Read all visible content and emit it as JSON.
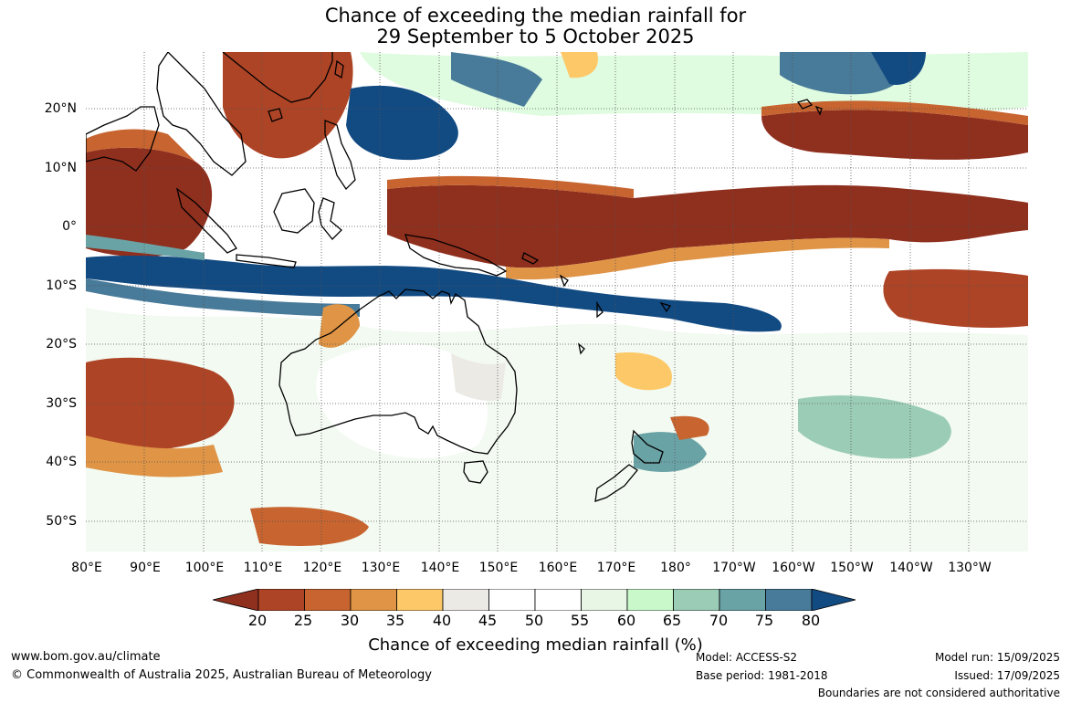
{
  "title": {
    "line1": "Chance of exceeding the median rainfall for",
    "line2": "29 September to 5 October 2025"
  },
  "axes": {
    "lat_labels": [
      "20°N",
      "10°N",
      "0°",
      "10°S",
      "20°S",
      "30°S",
      "40°S",
      "50°S"
    ],
    "lon_labels": [
      "80°E",
      "90°E",
      "100°E",
      "110°E",
      "120°E",
      "130°E",
      "140°E",
      "150°E",
      "160°E",
      "170°E",
      "180°",
      "170°W",
      "160°W",
      "150°W",
      "140°W",
      "130°W"
    ]
  },
  "legend": {
    "label": "Chance of exceeding median rainfall (%)",
    "ticks": [
      "20",
      "25",
      "30",
      "35",
      "40",
      "45",
      "50",
      "55",
      "60",
      "65",
      "70",
      "75",
      "80"
    ],
    "colors": [
      "#8f2f1e",
      "#ae4426",
      "#c7642f",
      "#df9446",
      "#fdc968",
      "#eceae5",
      "#ffffff",
      "#ffffff",
      "#e8f6e6",
      "#c9f9cb",
      "#9bccb6",
      "#6aa3a6",
      "#487a99",
      "#124a82"
    ]
  },
  "footer": {
    "website": "www.bom.gov.au/climate",
    "copyright": "© Commonwealth of Australia 2025, Australian Bureau of Meteorology",
    "model": "Model: ACCESS-S2",
    "base_period": "Base period: 1981-2018",
    "model_run": "Model run: 15/09/2025",
    "issued": "Issued: 17/09/2025",
    "disclaimer": "Boundaries are not considered authoritative"
  }
}
